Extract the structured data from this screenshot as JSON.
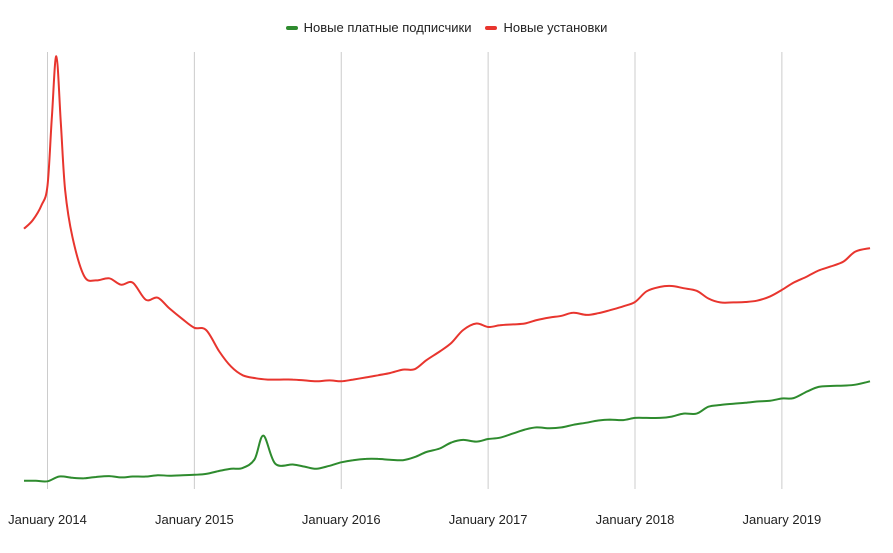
{
  "chart_data": {
    "type": "line",
    "title": "",
    "xlabel": "",
    "ylabel": "",
    "legend_position": "top",
    "grid": {
      "x": true,
      "y": false
    },
    "x_ticks": [
      "January 2014",
      "January 2015",
      "January 2016",
      "January 2017",
      "January 2018",
      "January 2019"
    ],
    "x_tick_values": [
      2014.0,
      2015.0,
      2016.0,
      2017.0,
      2018.0,
      2019.0
    ],
    "xlim": [
      2013.84,
      2019.6
    ],
    "ylim": [
      0,
      100
    ],
    "series": [
      {
        "name": "Новые платные подписчики",
        "color": "#2e8b2e",
        "x": [
          2013.84,
          2013.92,
          2014.0,
          2014.08,
          2014.17,
          2014.25,
          2014.33,
          2014.42,
          2014.5,
          2014.58,
          2014.67,
          2014.75,
          2014.83,
          2014.92,
          2015.0,
          2015.08,
          2015.17,
          2015.25,
          2015.33,
          2015.41,
          2015.47,
          2015.55,
          2015.67,
          2015.75,
          2015.83,
          2015.92,
          2016.0,
          2016.08,
          2016.17,
          2016.25,
          2016.33,
          2016.42,
          2016.5,
          2016.58,
          2016.67,
          2016.75,
          2016.83,
          2016.92,
          2017.0,
          2017.08,
          2017.17,
          2017.25,
          2017.33,
          2017.42,
          2017.5,
          2017.58,
          2017.67,
          2017.75,
          2017.83,
          2017.92,
          2018.0,
          2018.08,
          2018.17,
          2018.25,
          2018.33,
          2018.42,
          2018.5,
          2018.58,
          2018.67,
          2018.75,
          2018.83,
          2018.92,
          2019.0,
          2019.08,
          2019.17,
          2019.25,
          2019.33,
          2019.42,
          2019.5,
          2019.6
        ],
        "values": [
          0.5,
          0.5,
          0.4,
          1.5,
          1.2,
          1.1,
          1.4,
          1.6,
          1.3,
          1.5,
          1.5,
          1.8,
          1.7,
          1.8,
          1.9,
          2.1,
          2.8,
          3.3,
          3.5,
          5.5,
          11.0,
          4.5,
          4.3,
          3.8,
          3.3,
          4.0,
          4.8,
          5.3,
          5.6,
          5.6,
          5.4,
          5.3,
          6.0,
          7.2,
          8.0,
          9.4,
          10.0,
          9.6,
          10.2,
          10.5,
          11.5,
          12.4,
          12.9,
          12.7,
          12.9,
          13.5,
          14.0,
          14.5,
          14.7,
          14.6,
          15.1,
          15.1,
          15.1,
          15.4,
          16.1,
          16.1,
          17.7,
          18.1,
          18.4,
          18.6,
          18.9,
          19.1,
          19.6,
          19.7,
          21.2,
          22.3,
          22.5,
          22.6,
          22.8,
          23.6
        ]
      },
      {
        "name": "Новые установки",
        "color": "#e8352e",
        "x": [
          2013.84,
          2013.9,
          2013.96,
          2014.0,
          2014.03,
          2014.06,
          2014.09,
          2014.12,
          2014.17,
          2014.25,
          2014.33,
          2014.42,
          2014.5,
          2014.58,
          2014.67,
          2014.75,
          2014.83,
          2014.92,
          2015.0,
          2015.08,
          2015.17,
          2015.25,
          2015.33,
          2015.42,
          2015.5,
          2015.58,
          2015.67,
          2015.75,
          2015.83,
          2015.92,
          2016.0,
          2016.08,
          2016.17,
          2016.25,
          2016.33,
          2016.42,
          2016.5,
          2016.58,
          2016.67,
          2016.75,
          2016.83,
          2016.92,
          2017.0,
          2017.08,
          2017.17,
          2017.25,
          2017.33,
          2017.42,
          2017.5,
          2017.58,
          2017.67,
          2017.75,
          2017.83,
          2017.92,
          2018.0,
          2018.08,
          2018.17,
          2018.25,
          2018.33,
          2018.42,
          2018.5,
          2018.58,
          2018.67,
          2018.75,
          2018.83,
          2018.92,
          2019.0,
          2019.08,
          2019.17,
          2019.25,
          2019.33,
          2019.42,
          2019.5,
          2019.6
        ],
        "values": [
          59.0,
          61.0,
          64.5,
          69.0,
          85.0,
          99.0,
          84.0,
          68.0,
          57.0,
          48.0,
          47.0,
          47.5,
          46.0,
          46.5,
          42.5,
          43.0,
          40.5,
          38.0,
          36.0,
          35.5,
          30.5,
          27.0,
          25.0,
          24.3,
          24.0,
          24.0,
          24.0,
          23.8,
          23.6,
          23.8,
          23.6,
          24.0,
          24.5,
          25.0,
          25.5,
          26.3,
          26.4,
          28.5,
          30.5,
          32.5,
          35.5,
          37.0,
          36.2,
          36.6,
          36.8,
          37.0,
          37.8,
          38.4,
          38.8,
          39.5,
          39.0,
          39.4,
          40.1,
          41.0,
          42.0,
          44.5,
          45.5,
          45.7,
          45.2,
          44.6,
          42.8,
          41.9,
          41.9,
          42.0,
          42.3,
          43.3,
          44.8,
          46.5,
          47.9,
          49.3,
          50.2,
          51.4,
          53.7,
          54.5
        ]
      }
    ]
  }
}
